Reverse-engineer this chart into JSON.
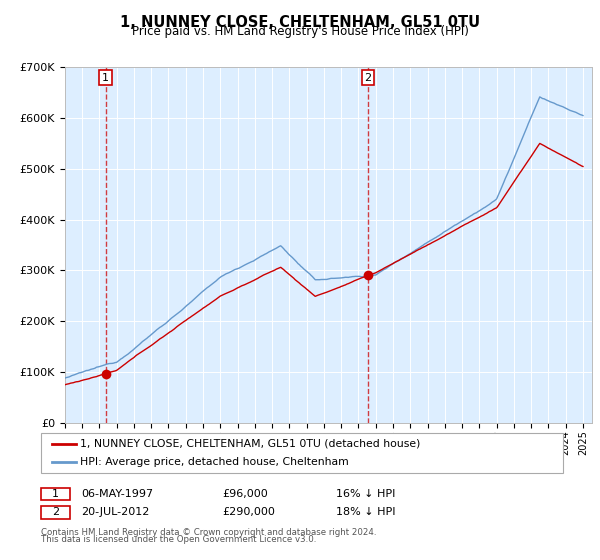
{
  "title": "1, NUNNEY CLOSE, CHELTENHAM, GL51 0TU",
  "subtitle": "Price paid vs. HM Land Registry's House Price Index (HPI)",
  "legend_line1": "1, NUNNEY CLOSE, CHELTENHAM, GL51 0TU (detached house)",
  "legend_line2": "HPI: Average price, detached house, Cheltenham",
  "footnote1": "Contains HM Land Registry data © Crown copyright and database right 2024.",
  "footnote2": "This data is licensed under the Open Government Licence v3.0.",
  "sale1_label": "1",
  "sale1_date": "06-MAY-1997",
  "sale1_price": "£96,000",
  "sale1_hpi": "16% ↓ HPI",
  "sale2_label": "2",
  "sale2_date": "20-JUL-2012",
  "sale2_price": "£290,000",
  "sale2_hpi": "18% ↓ HPI",
  "red_color": "#cc0000",
  "blue_color": "#6699cc",
  "bg_color": "#ddeeff",
  "grid_color": "#ffffff",
  "sale1_year": 1997.36,
  "sale1_value": 96000,
  "sale2_year": 2012.55,
  "sale2_value": 290000,
  "xmin": 1995.0,
  "xmax": 2025.5,
  "ymin": 0,
  "ymax": 700000
}
